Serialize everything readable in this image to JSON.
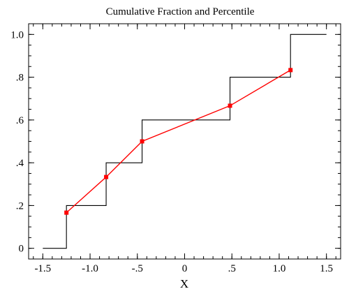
{
  "chart_data": {
    "type": "line",
    "title": "Cumulative Fraction and Percentile",
    "xlabel": "X",
    "ylabel": "",
    "xlim": [
      -1.65,
      1.65
    ],
    "ylim": [
      -0.05,
      1.05
    ],
    "x_ticks": [
      {
        "value": -1.5,
        "label": "-1.5"
      },
      {
        "value": -1.0,
        "label": "-1.0"
      },
      {
        "value": -0.5,
        "label": "-.5"
      },
      {
        "value": 0,
        "label": "0"
      },
      {
        "value": 0.5,
        "label": ".5"
      },
      {
        "value": 1.0,
        "label": "1.0"
      },
      {
        "value": 1.5,
        "label": "1.5"
      }
    ],
    "y_ticks": [
      {
        "value": 0,
        "label": "0"
      },
      {
        "value": 0.2,
        "label": ".2"
      },
      {
        "value": 0.4,
        "label": ".4"
      },
      {
        "value": 0.6,
        "label": ".6"
      },
      {
        "value": 0.8,
        "label": ".8"
      },
      {
        "value": 1.0,
        "label": "1.0"
      }
    ],
    "x_minor_step": 0.1,
    "y_minor_step": 0.05,
    "grid": false,
    "series": [
      {
        "style": "step",
        "color": "#000000",
        "points": [
          [
            -1.5,
            0
          ],
          [
            -1.25,
            0
          ],
          [
            -1.25,
            0.2
          ],
          [
            -0.83,
            0.2
          ],
          [
            -0.83,
            0.4
          ],
          [
            -0.45,
            0.4
          ],
          [
            -0.45,
            0.6
          ],
          [
            0.48,
            0.6
          ],
          [
            0.48,
            0.8
          ],
          [
            1.12,
            0.8
          ],
          [
            1.12,
            1.0
          ],
          [
            1.5,
            1.0
          ]
        ]
      },
      {
        "style": "line-markers",
        "color": "#ff0000",
        "points": [
          [
            -1.25,
            0.1667
          ],
          [
            -0.83,
            0.3333
          ],
          [
            -0.45,
            0.5
          ],
          [
            0.48,
            0.6667
          ],
          [
            1.12,
            0.8333
          ]
        ]
      }
    ]
  }
}
